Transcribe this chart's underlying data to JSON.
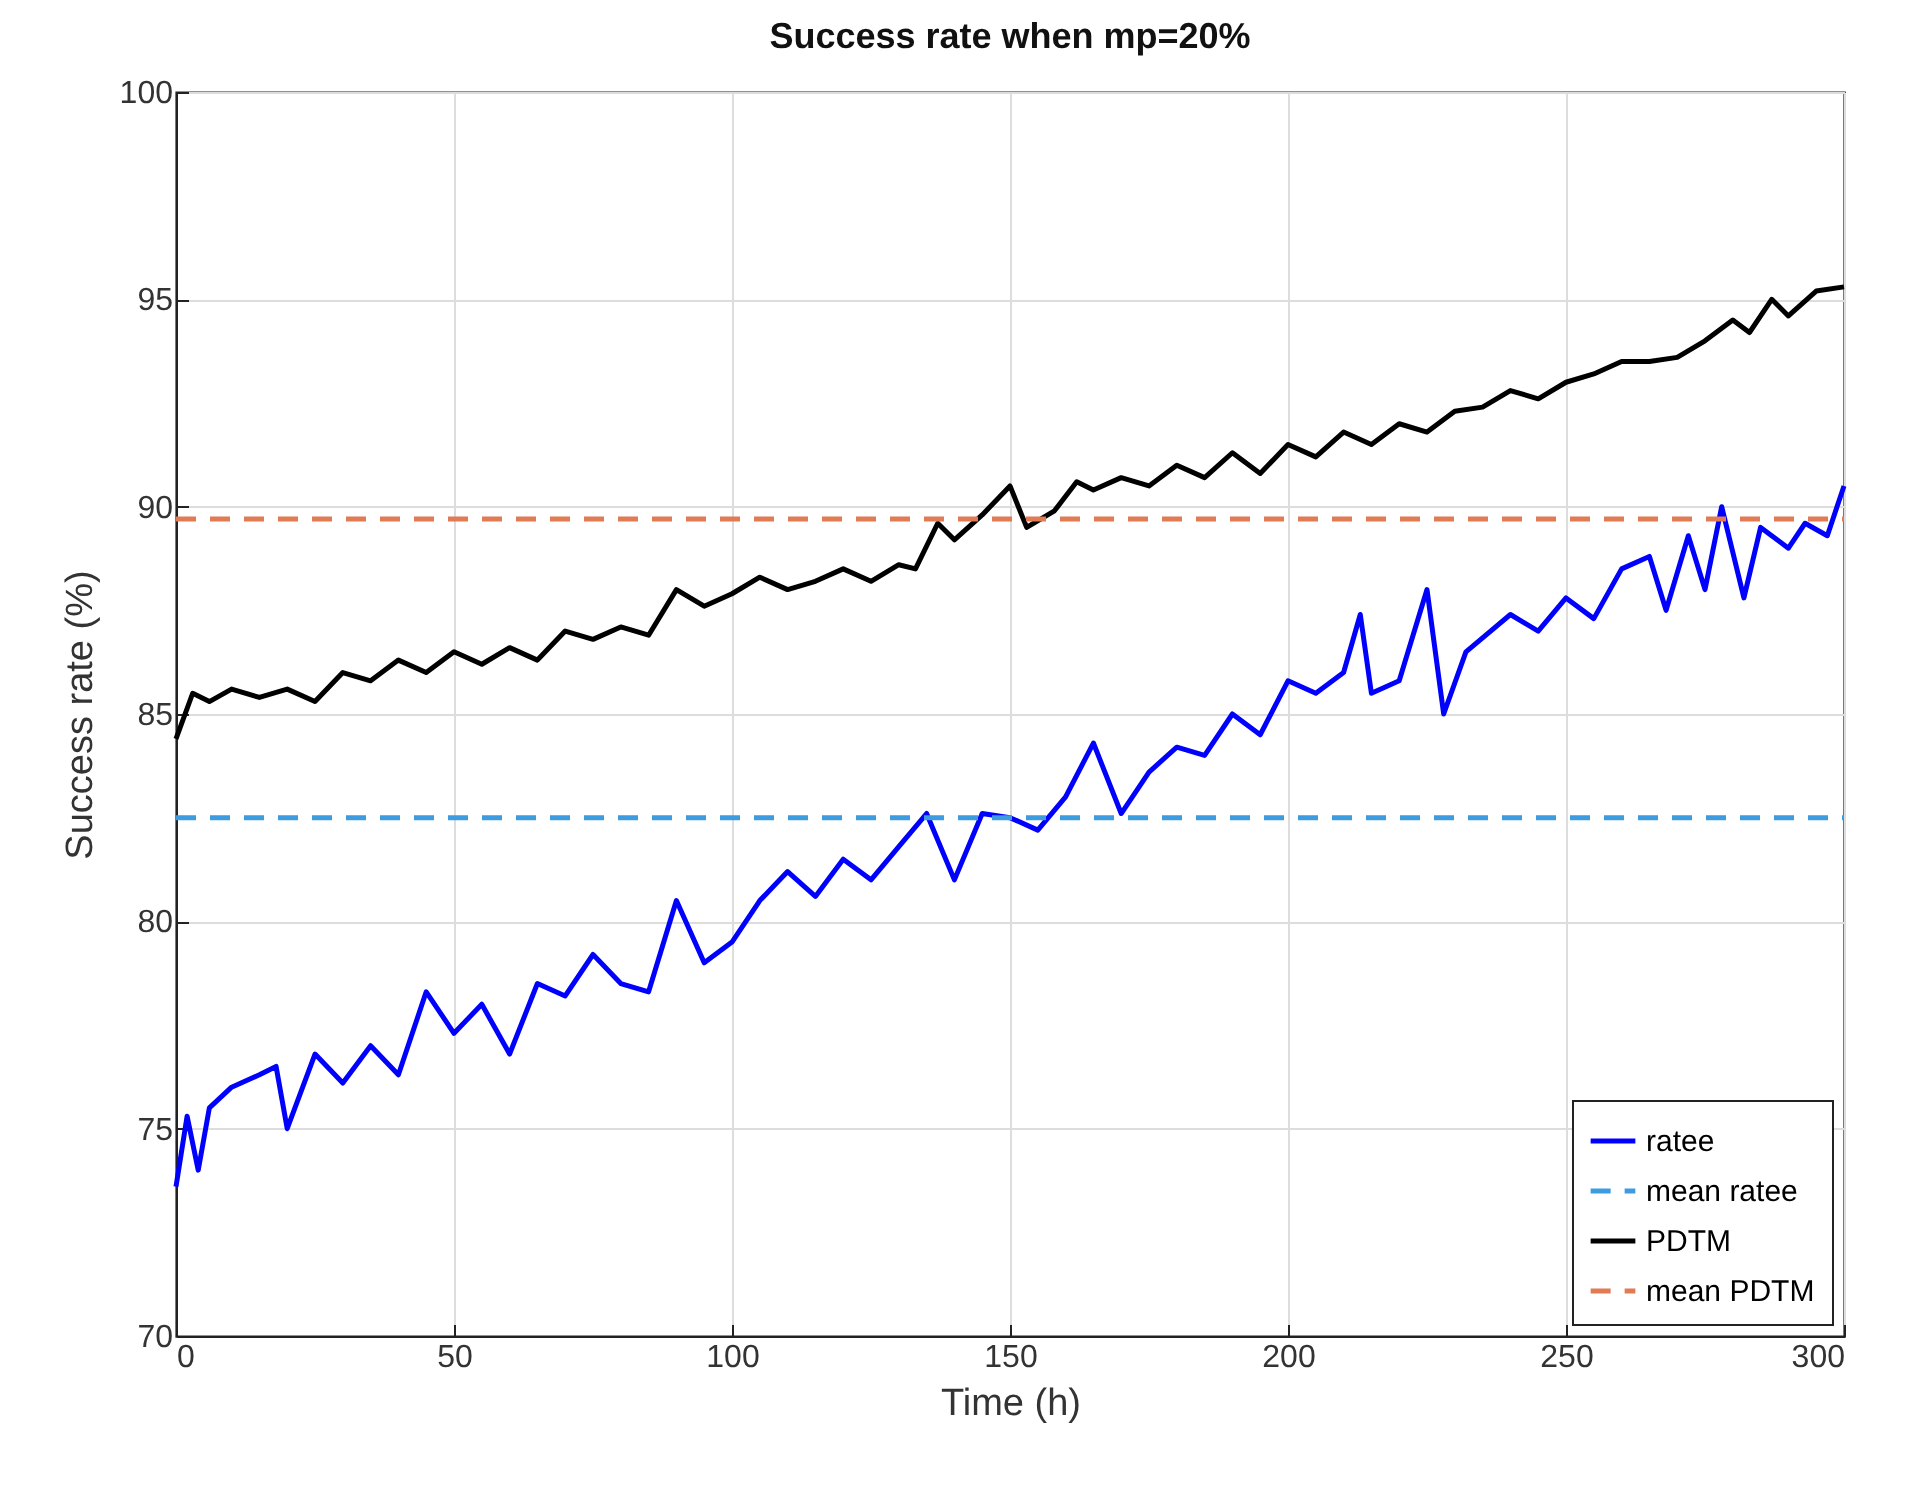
{
  "chart_data": {
    "type": "line",
    "title": "Success rate when mp=20%",
    "xlabel": "Time (h)",
    "ylabel": "Success rate (%)",
    "xlim": [
      0,
      300
    ],
    "ylim": [
      70,
      100
    ],
    "xticks": [
      0,
      50,
      100,
      150,
      200,
      250,
      300
    ],
    "yticks": [
      70,
      75,
      80,
      85,
      90,
      95,
      100
    ],
    "grid": true,
    "legend": "bottom right",
    "series": [
      {
        "name": "ratee",
        "color": "#0000ff",
        "line_style": "solid",
        "x": [
          0,
          2,
          4,
          6,
          10,
          15,
          18,
          20,
          25,
          30,
          35,
          40,
          45,
          50,
          55,
          60,
          65,
          70,
          75,
          80,
          85,
          90,
          95,
          100,
          105,
          110,
          115,
          120,
          125,
          130,
          135,
          140,
          145,
          150,
          155,
          160,
          165,
          170,
          175,
          180,
          185,
          190,
          195,
          200,
          205,
          210,
          213,
          215,
          220,
          225,
          228,
          232,
          240,
          245,
          250,
          255,
          260,
          265,
          268,
          272,
          275,
          278,
          282,
          285,
          290,
          293,
          297,
          300
        ],
        "values": [
          73.6,
          75.3,
          74.0,
          75.5,
          76.0,
          76.3,
          76.5,
          75.0,
          76.8,
          76.1,
          77.0,
          76.3,
          78.3,
          77.3,
          78.0,
          76.8,
          78.5,
          78.2,
          79.2,
          78.5,
          78.3,
          80.5,
          79.0,
          79.5,
          80.5,
          81.2,
          80.6,
          81.5,
          81.0,
          81.8,
          82.6,
          81.0,
          82.6,
          82.5,
          82.2,
          83.0,
          84.3,
          82.6,
          83.6,
          84.2,
          84.0,
          85.0,
          84.5,
          85.8,
          85.5,
          86.0,
          87.4,
          85.5,
          85.8,
          88.0,
          85.0,
          86.5,
          87.4,
          87.0,
          87.8,
          87.3,
          88.5,
          88.8,
          87.5,
          89.3,
          88.0,
          90.0,
          87.8,
          89.5,
          89.0,
          89.6,
          89.3,
          90.5
        ]
      },
      {
        "name": "mean ratee",
        "color": "#3d9be0",
        "line_style": "dashed",
        "x": [
          0,
          300
        ],
        "values": [
          82.5,
          82.5
        ]
      },
      {
        "name": "PDTM",
        "color": "#000000",
        "line_style": "solid",
        "x": [
          0,
          3,
          6,
          10,
          15,
          20,
          25,
          30,
          35,
          40,
          45,
          50,
          55,
          60,
          65,
          70,
          75,
          80,
          85,
          90,
          95,
          100,
          105,
          110,
          115,
          120,
          125,
          130,
          133,
          137,
          140,
          145,
          150,
          153,
          158,
          162,
          165,
          170,
          175,
          180,
          185,
          190,
          195,
          200,
          205,
          210,
          215,
          220,
          225,
          230,
          235,
          240,
          245,
          250,
          255,
          260,
          265,
          270,
          275,
          280,
          283,
          287,
          290,
          295,
          300
        ],
        "values": [
          84.4,
          85.5,
          85.3,
          85.6,
          85.4,
          85.6,
          85.3,
          86.0,
          85.8,
          86.3,
          86.0,
          86.5,
          86.2,
          86.6,
          86.3,
          87.0,
          86.8,
          87.1,
          86.9,
          88.0,
          87.6,
          87.9,
          88.3,
          88.0,
          88.2,
          88.5,
          88.2,
          88.6,
          88.5,
          89.6,
          89.2,
          89.8,
          90.5,
          89.5,
          89.9,
          90.6,
          90.4,
          90.7,
          90.5,
          91.0,
          90.7,
          91.3,
          90.8,
          91.5,
          91.2,
          91.8,
          91.5,
          92.0,
          91.8,
          92.3,
          92.4,
          92.8,
          92.6,
          93.0,
          93.2,
          93.5,
          93.5,
          93.6,
          94.0,
          94.5,
          94.2,
          95.0,
          94.6,
          95.2,
          95.3
        ]
      },
      {
        "name": "mean PDTM",
        "color": "#e07b54",
        "line_style": "dashed",
        "x": [
          0,
          300
        ],
        "values": [
          89.7,
          89.7
        ]
      }
    ]
  }
}
